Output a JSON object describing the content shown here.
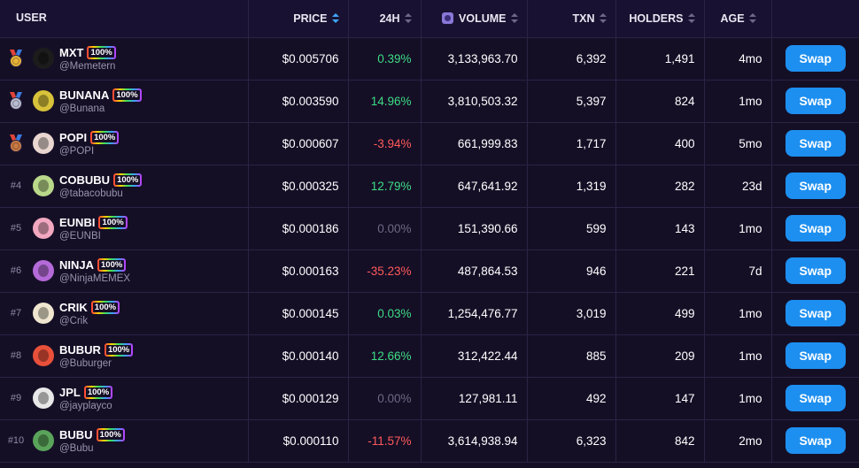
{
  "headers": {
    "user": "USER",
    "price": "PRICE",
    "change_24h": "24H",
    "volume": "VOLUME",
    "txn": "TXN",
    "holders": "HOLDERS",
    "age": "AGE"
  },
  "swap_label": "Swap",
  "badge_label": "100%",
  "colors": {
    "background": "#150f26",
    "header_background": "#191131",
    "positive": "#3ddc84",
    "negative": "#ff5a5a",
    "neutral": "#6d6784",
    "swap_button": "#1d8ff0",
    "sort_active": "#3ea6ff"
  },
  "rows": [
    {
      "rank": "",
      "medal": "gold-medal-icon",
      "symbol": "MXT",
      "handle": "@Memetern",
      "price": "$0.005706",
      "change": "0.39%",
      "trend": "pos",
      "volume": "3,133,963.70",
      "txn": "6,392",
      "holders": "1,491",
      "age": "4mo",
      "avatar_color": "#1c1c1c"
    },
    {
      "rank": "",
      "medal": "silver-medal-icon",
      "symbol": "BUNANA",
      "handle": "@Bunana",
      "price": "$0.003590",
      "change": "14.96%",
      "trend": "pos",
      "volume": "3,810,503.32",
      "txn": "5,397",
      "holders": "824",
      "age": "1mo",
      "avatar_color": "#d8c23a"
    },
    {
      "rank": "",
      "medal": "bronze-medal-icon",
      "symbol": "POPI",
      "handle": "@POPI",
      "price": "$0.000607",
      "change": "-3.94%",
      "trend": "neg",
      "volume": "661,999.83",
      "txn": "1,717",
      "holders": "400",
      "age": "5mo",
      "avatar_color": "#e9d6d0"
    },
    {
      "rank": "#4",
      "medal": "",
      "symbol": "COBUBU",
      "handle": "@tabacobubu",
      "price": "$0.000325",
      "change": "12.79%",
      "trend": "pos",
      "volume": "647,641.92",
      "txn": "1,319",
      "holders": "282",
      "age": "23d",
      "avatar_color": "#b9d88a"
    },
    {
      "rank": "#5",
      "medal": "",
      "symbol": "EUNBI",
      "handle": "@EUNBI",
      "price": "$0.000186",
      "change": "0.00%",
      "trend": "zero",
      "volume": "151,390.66",
      "txn": "599",
      "holders": "143",
      "age": "1mo",
      "avatar_color": "#f2a8c0"
    },
    {
      "rank": "#6",
      "medal": "",
      "symbol": "NINJA",
      "handle": "@NinjaMEMEX",
      "price": "$0.000163",
      "change": "-35.23%",
      "trend": "neg",
      "volume": "487,864.53",
      "txn": "946",
      "holders": "221",
      "age": "7d",
      "avatar_color": "#b46ad8"
    },
    {
      "rank": "#7",
      "medal": "",
      "symbol": "CRIK",
      "handle": "@Crik",
      "price": "$0.000145",
      "change": "0.03%",
      "trend": "pos",
      "volume": "1,254,476.77",
      "txn": "3,019",
      "holders": "499",
      "age": "1mo",
      "avatar_color": "#f0e6cf"
    },
    {
      "rank": "#8",
      "medal": "",
      "symbol": "BUBUR",
      "handle": "@Buburger",
      "price": "$0.000140",
      "change": "12.66%",
      "trend": "pos",
      "volume": "312,422.44",
      "txn": "885",
      "holders": "209",
      "age": "1mo",
      "avatar_color": "#e8503a"
    },
    {
      "rank": "#9",
      "medal": "",
      "symbol": "JPL",
      "handle": "@jayplayco",
      "price": "$0.000129",
      "change": "0.00%",
      "trend": "zero",
      "volume": "127,981.11",
      "txn": "492",
      "holders": "147",
      "age": "1mo",
      "avatar_color": "#e8e8e8"
    },
    {
      "rank": "#10",
      "medal": "",
      "symbol": "BUBU",
      "handle": "@Bubu",
      "price": "$0.000110",
      "change": "-11.57%",
      "trend": "neg",
      "volume": "3,614,938.94",
      "txn": "6,323",
      "holders": "842",
      "age": "2mo",
      "avatar_color": "#5aa35a"
    }
  ]
}
